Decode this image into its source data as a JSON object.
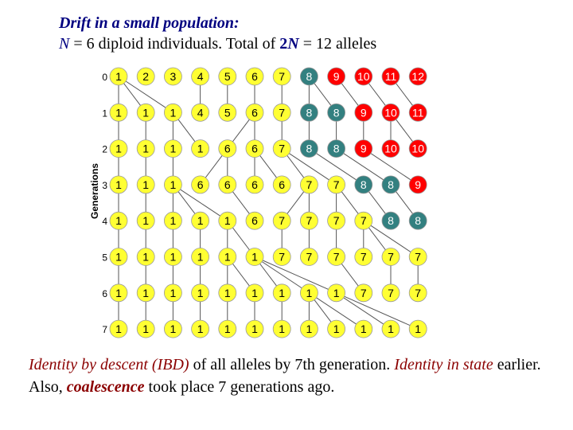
{
  "title": {
    "line1": "Drift in a small population:",
    "line2_parts": {
      "n_symbol": "N",
      "n_text": " = 6 diploid individuals. Total of ",
      "two_n_num": "2",
      "two_n_symbol": "N",
      "total_text": " = 12 alleles"
    }
  },
  "diagram": {
    "axis_label": "Generations",
    "colors": {
      "yellow": "#ffff33",
      "teal": "#338080",
      "red": "#ff0000",
      "line": "#555555",
      "text_light": "#ffffff",
      "text_dark": "#000000"
    },
    "generations": [
      {
        "gen": "0",
        "alleles": [
          "1",
          "2",
          "3",
          "4",
          "5",
          "6",
          "7",
          "8",
          "9",
          "10",
          "11",
          "12"
        ],
        "colors": [
          "yellow",
          "yellow",
          "yellow",
          "yellow",
          "yellow",
          "yellow",
          "yellow",
          "teal",
          "red",
          "red",
          "red",
          "red"
        ],
        "parents": []
      },
      {
        "gen": "1",
        "alleles": [
          "1",
          "1",
          "1",
          "4",
          "5",
          "6",
          "7",
          "8",
          "8",
          "9",
          "10",
          "11"
        ],
        "colors": [
          "yellow",
          "yellow",
          "yellow",
          "yellow",
          "yellow",
          "yellow",
          "yellow",
          "teal",
          "teal",
          "red",
          "red",
          "red"
        ],
        "parents": [
          0,
          0,
          0,
          3,
          4,
          5,
          6,
          7,
          7,
          8,
          9,
          10
        ]
      },
      {
        "gen": "2",
        "alleles": [
          "1",
          "1",
          "1",
          "1",
          "6",
          "6",
          "7",
          "8",
          "8",
          "9",
          "10",
          "10"
        ],
        "colors": [
          "yellow",
          "yellow",
          "yellow",
          "yellow",
          "yellow",
          "yellow",
          "yellow",
          "teal",
          "teal",
          "red",
          "red",
          "red"
        ],
        "parents": [
          0,
          1,
          2,
          2,
          5,
          5,
          6,
          7,
          8,
          9,
          10,
          10
        ]
      },
      {
        "gen": "3",
        "alleles": [
          "1",
          "1",
          "1",
          "6",
          "6",
          "6",
          "6",
          "7",
          "7",
          "8",
          "8",
          "9"
        ],
        "colors": [
          "yellow",
          "yellow",
          "yellow",
          "yellow",
          "yellow",
          "yellow",
          "yellow",
          "yellow",
          "yellow",
          "teal",
          "teal",
          "red"
        ],
        "parents": [
          0,
          1,
          2,
          4,
          4,
          5,
          5,
          6,
          6,
          7,
          8,
          9
        ]
      },
      {
        "gen": "4",
        "alleles": [
          "1",
          "1",
          "1",
          "1",
          "1",
          "6",
          "7",
          "7",
          "7",
          "7",
          "8",
          "8"
        ],
        "colors": [
          "yellow",
          "yellow",
          "yellow",
          "yellow",
          "yellow",
          "yellow",
          "yellow",
          "yellow",
          "yellow",
          "yellow",
          "teal",
          "teal"
        ],
        "parents": [
          0,
          1,
          2,
          2,
          2,
          4,
          7,
          7,
          8,
          8,
          9,
          10
        ]
      },
      {
        "gen": "5",
        "alleles": [
          "1",
          "1",
          "1",
          "1",
          "1",
          "1",
          "7",
          "7",
          "7",
          "7",
          "7",
          "7"
        ],
        "colors": [
          "yellow",
          "yellow",
          "yellow",
          "yellow",
          "yellow",
          "yellow",
          "yellow",
          "yellow",
          "yellow",
          "yellow",
          "yellow",
          "yellow"
        ],
        "parents": [
          0,
          1,
          2,
          3,
          4,
          4,
          6,
          7,
          8,
          9,
          9,
          9
        ]
      },
      {
        "gen": "6",
        "alleles": [
          "1",
          "1",
          "1",
          "1",
          "1",
          "1",
          "1",
          "1",
          "1",
          "7",
          "7",
          "7"
        ],
        "colors": [
          "yellow",
          "yellow",
          "yellow",
          "yellow",
          "yellow",
          "yellow",
          "yellow",
          "yellow",
          "yellow",
          "yellow",
          "yellow",
          "yellow"
        ],
        "parents": [
          0,
          1,
          2,
          3,
          4,
          4,
          5,
          5,
          5,
          8,
          10,
          11
        ]
      },
      {
        "gen": "7",
        "alleles": [
          "1",
          "1",
          "1",
          "1",
          "1",
          "1",
          "1",
          "1",
          "1",
          "1",
          "1",
          "1"
        ],
        "colors": [
          "yellow",
          "yellow",
          "yellow",
          "yellow",
          "yellow",
          "yellow",
          "yellow",
          "yellow",
          "yellow",
          "yellow",
          "yellow",
          "yellow"
        ],
        "parents": [
          0,
          1,
          2,
          3,
          4,
          5,
          6,
          7,
          7,
          7,
          8,
          8
        ]
      }
    ]
  },
  "caption": {
    "ibd_term": "Identity by descent (IBD)",
    "ibd_rest": " of all alleles by 7th generation.  ",
    "identity_term": "Identity in state",
    "identity_rest": " earlier.",
    "also": "Also, ",
    "coalescence_term": "coalescence",
    "coalescence_rest": " took place 7 generations ago."
  }
}
